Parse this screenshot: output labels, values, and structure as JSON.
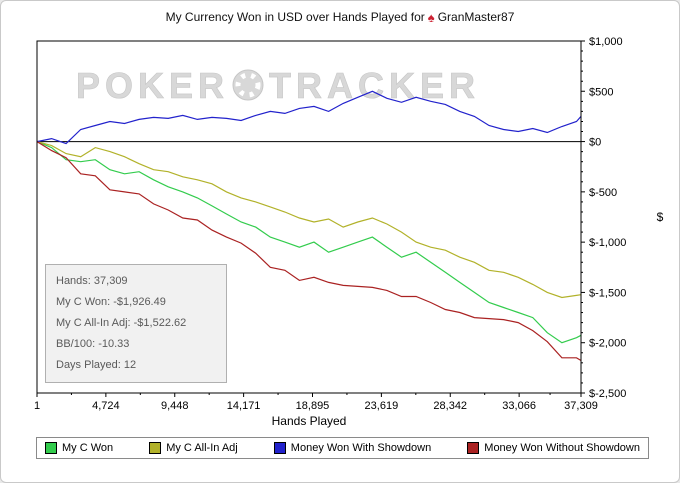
{
  "header": {
    "title_prefix": "My Currency Won in USD over Hands Played for",
    "player": "GranMaster87",
    "logo_icon": "pokertracker-spade",
    "logo_glyph": "♠",
    "logo_color": "#cc2233"
  },
  "watermark": {
    "parts": [
      "POKER",
      "TRACKER"
    ],
    "color": "#d8d8d8"
  },
  "infobox": {
    "lines": [
      {
        "text": "Hands: 37,309"
      },
      {
        "text": "My C Won: -$1,926.49"
      },
      {
        "text": "My C All-In Adj: -$1,522.62"
      },
      {
        "text": "BB/100: -10.33"
      },
      {
        "text": "Days Played: 12"
      }
    ]
  },
  "legend": {
    "items": [
      {
        "label": "My C Won",
        "color": "#33cc4d"
      },
      {
        "label": "My C All-In Adj",
        "color": "#b2b22a"
      },
      {
        "label": "Money Won With Showdown",
        "color": "#2222cc"
      },
      {
        "label": "Money Won Without Showdown",
        "color": "#aa2222"
      }
    ]
  },
  "chart_data": {
    "type": "line",
    "title": "My Currency Won in USD over Hands Played for GranMaster87",
    "xlabel": "Hands Played",
    "ylabel": "$",
    "grid": false,
    "legend_position": "bottom",
    "x_range": [
      1,
      37309
    ],
    "y_range": [
      -2500,
      1000
    ],
    "x_ticks": [
      {
        "value": 1,
        "label": "1"
      },
      {
        "value": 4724,
        "label": "4,724"
      },
      {
        "value": 9448,
        "label": "9,448"
      },
      {
        "value": 14171,
        "label": "14,171"
      },
      {
        "value": 18895,
        "label": "18,895"
      },
      {
        "value": 23619,
        "label": "23,619"
      },
      {
        "value": 28342,
        "label": "28,342"
      },
      {
        "value": 33066,
        "label": "33,066"
      },
      {
        "value": 37309,
        "label": "37,309"
      }
    ],
    "y_ticks": [
      {
        "value": 1000,
        "label": "$1,000"
      },
      {
        "value": 500,
        "label": "$500"
      },
      {
        "value": 0,
        "label": "$0"
      },
      {
        "value": -500,
        "label": "$-500"
      },
      {
        "value": -1000,
        "label": "$-1,000"
      },
      {
        "value": -1500,
        "label": "$-1,500"
      },
      {
        "value": -2000,
        "label": "$-2,000"
      },
      {
        "value": -2500,
        "label": "$-2,500"
      }
    ],
    "x": [
      1,
      1000,
      2000,
      3000,
      4000,
      5000,
      6000,
      7000,
      8000,
      9000,
      10000,
      11000,
      12000,
      13000,
      14000,
      15000,
      16000,
      17000,
      18000,
      19000,
      20000,
      21000,
      22000,
      23000,
      24000,
      25000,
      26000,
      27000,
      28000,
      29000,
      30000,
      31000,
      32000,
      33000,
      34000,
      35000,
      36000,
      37000,
      37309
    ],
    "series": [
      {
        "name": "My C Won",
        "color": "#33cc4d",
        "values": [
          0,
          -60,
          -180,
          -200,
          -180,
          -280,
          -320,
          -300,
          -380,
          -450,
          -500,
          -560,
          -640,
          -720,
          -800,
          -850,
          -950,
          -1000,
          -1050,
          -1000,
          -1100,
          -1050,
          -1000,
          -950,
          -1050,
          -1150,
          -1100,
          -1200,
          -1300,
          -1400,
          -1500,
          -1600,
          -1650,
          -1700,
          -1750,
          -1900,
          -2000,
          -1950,
          -1926.49
        ]
      },
      {
        "name": "My C All-In Adj",
        "color": "#b2b22a",
        "values": [
          0,
          -40,
          -120,
          -150,
          -60,
          -100,
          -150,
          -220,
          -280,
          -300,
          -350,
          -380,
          -420,
          -500,
          -560,
          -600,
          -650,
          -700,
          -760,
          -800,
          -770,
          -850,
          -800,
          -760,
          -820,
          -900,
          -1000,
          -1050,
          -1080,
          -1150,
          -1200,
          -1280,
          -1300,
          -1350,
          -1420,
          -1500,
          -1550,
          -1530,
          -1522.62
        ]
      },
      {
        "name": "Money Won With Showdown",
        "color": "#2222cc",
        "values": [
          0,
          30,
          -20,
          120,
          160,
          200,
          180,
          220,
          240,
          230,
          260,
          220,
          240,
          230,
          210,
          260,
          300,
          280,
          330,
          350,
          300,
          380,
          440,
          500,
          430,
          390,
          440,
          400,
          370,
          300,
          250,
          160,
          120,
          100,
          130,
          90,
          150,
          200,
          250
        ]
      },
      {
        "name": "Money Won Without Showdown",
        "color": "#aa2222",
        "values": [
          0,
          -90,
          -160,
          -320,
          -340,
          -480,
          -500,
          -520,
          -620,
          -680,
          -760,
          -780,
          -880,
          -950,
          -1010,
          -1110,
          -1250,
          -1280,
          -1380,
          -1350,
          -1400,
          -1430,
          -1440,
          -1450,
          -1480,
          -1540,
          -1540,
          -1600,
          -1670,
          -1700,
          -1750,
          -1760,
          -1770,
          -1800,
          -1880,
          -1990,
          -2150,
          -2150,
          -2176.49
        ]
      }
    ]
  }
}
